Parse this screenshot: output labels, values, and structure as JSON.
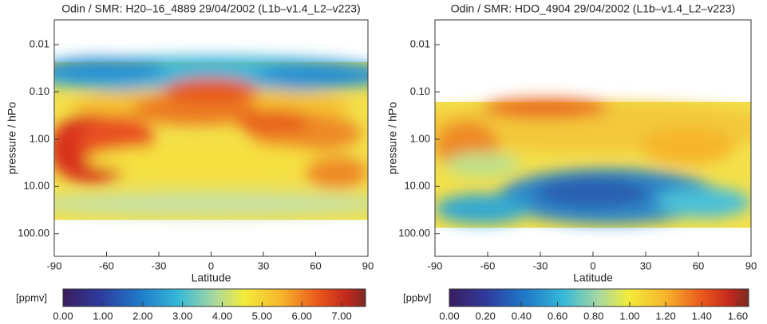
{
  "chart_data": [
    {
      "type": "contour",
      "title": "Odin / SMR: H20–16_4889 29/04/2002 (L1b–v1.4_L2–v223)",
      "xlabel": "Latitude",
      "ylabel": "pressure / hPo",
      "xlim": [
        -90,
        90
      ],
      "xticks": [
        -90,
        -60,
        -30,
        0,
        30,
        60,
        90
      ],
      "ylim": [
        300,
        0.003
      ],
      "ylog": true,
      "yticks": [
        {
          "value": 0.01,
          "label": "0.01"
        },
        {
          "value": 0.1,
          "label": "0.10"
        },
        {
          "value": 1,
          "label": "1.00"
        },
        {
          "value": 10,
          "label": "10.00"
        },
        {
          "value": 100,
          "label": "100.00"
        }
      ],
      "colorbar": {
        "label": "[ppmv]",
        "lim": [
          0,
          7.6
        ],
        "ticks": [
          {
            "value": 0,
            "label": "0.00"
          },
          {
            "value": 1,
            "label": "1.00"
          },
          {
            "value": 2,
            "label": "2.00"
          },
          {
            "value": 3,
            "label": "3.00"
          },
          {
            "value": 4,
            "label": "4.00"
          },
          {
            "value": 5,
            "label": "5.00"
          },
          {
            "value": 6,
            "label": "6.00"
          },
          {
            "value": 7,
            "label": "7.00"
          }
        ]
      }
    },
    {
      "type": "contour",
      "title": "Odin / SMR: HDO_4904 29/04/2002 (L1b–v1.4_L2–v223)",
      "xlabel": "Latitude",
      "ylabel": "pressure / hPo",
      "xlim": [
        -90,
        90
      ],
      "xticks": [
        -90,
        -60,
        -30,
        0,
        30,
        60,
        90
      ],
      "ylim": [
        300,
        0.003
      ],
      "ylog": true,
      "yticks": [
        {
          "value": 0.01,
          "label": "0.01"
        },
        {
          "value": 0.1,
          "label": "0.10"
        },
        {
          "value": 1,
          "label": "1.00"
        },
        {
          "value": 10,
          "label": "10.00"
        },
        {
          "value": 100,
          "label": "100.00"
        }
      ],
      "colorbar": {
        "label": "[ppbv]",
        "lim": [
          0,
          1.66
        ],
        "ticks": [
          {
            "value": 0,
            "label": "0.00"
          },
          {
            "value": 0.2,
            "label": "0.20"
          },
          {
            "value": 0.4,
            "label": "0.40"
          },
          {
            "value": 0.6,
            "label": "0.60"
          },
          {
            "value": 0.8,
            "label": "0.80"
          },
          {
            "value": 1,
            "label": "1.00"
          },
          {
            "value": 1.2,
            "label": "1.20"
          },
          {
            "value": 1.4,
            "label": "1.40"
          },
          {
            "value": 1.6,
            "label": "1.60"
          }
        ]
      }
    }
  ]
}
